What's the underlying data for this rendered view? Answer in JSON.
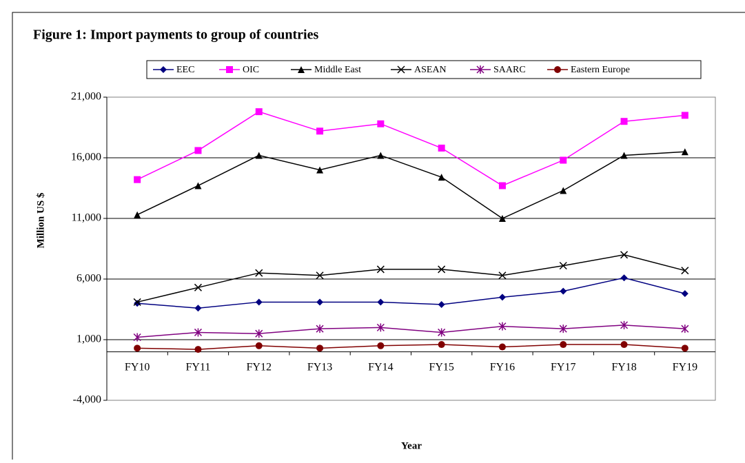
{
  "chart_data": {
    "type": "line",
    "title": "Figure 1: Import payments to group of countries",
    "y_label": "Million US $",
    "x_label": "Year",
    "categories": [
      "FY10",
      "FY11",
      "FY12",
      "FY13",
      "FY14",
      "FY15",
      "FY16",
      "FY17",
      "FY18",
      "FY19"
    ],
    "series": [
      {
        "name": "EEC",
        "color": "#000080",
        "marker": "diamond",
        "values": [
          4000,
          3600,
          4100,
          4100,
          4100,
          3900,
          4500,
          5000,
          6100,
          4800
        ]
      },
      {
        "name": "OIC",
        "color": "#ff00ff",
        "marker": "square",
        "values": [
          14200,
          16600,
          19800,
          18200,
          18800,
          16800,
          13700,
          15800,
          19000,
          19500
        ]
      },
      {
        "name": "Middle East",
        "color": "#000000",
        "marker": "triangle",
        "values": [
          11300,
          13700,
          16200,
          15000,
          16200,
          14400,
          11000,
          13300,
          16200,
          16500
        ]
      },
      {
        "name": "ASEAN",
        "color": "#000000",
        "marker": "x",
        "values": [
          4100,
          5300,
          6500,
          6300,
          6800,
          6800,
          6300,
          7100,
          8000,
          6700
        ]
      },
      {
        "name": "SAARC",
        "color": "#800080",
        "marker": "star",
        "values": [
          1200,
          1600,
          1500,
          1900,
          2000,
          1600,
          2100,
          1900,
          2200,
          1900
        ]
      },
      {
        "name": "Eastern Europe",
        "color": "#800000",
        "marker": "circle",
        "values": [
          300,
          200,
          500,
          300,
          500,
          600,
          400,
          600,
          600,
          300
        ]
      }
    ],
    "ylim": [
      -4000,
      21000
    ],
    "yticks": [
      {
        "value": -4000,
        "label": "-4,000"
      },
      {
        "value": 1000,
        "label": "1,000"
      },
      {
        "value": 6000,
        "label": "6,000"
      },
      {
        "value": 11000,
        "label": "11,000"
      },
      {
        "value": 16000,
        "label": "16,000"
      },
      {
        "value": 21000,
        "label": "21,000"
      }
    ],
    "grid": true,
    "legend": "top"
  }
}
